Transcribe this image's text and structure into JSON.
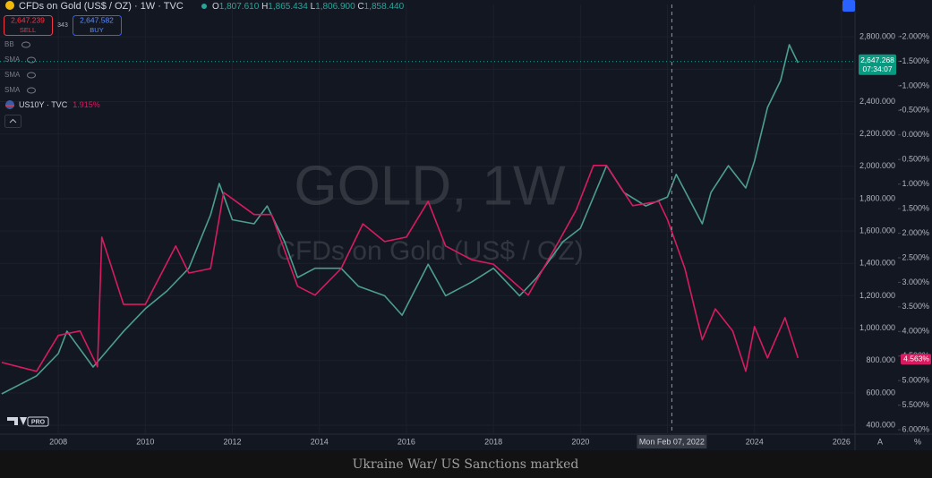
{
  "header": {
    "symbol": "CFDs on Gold (US$ / OZ) · 1W · TVC",
    "ohlc": [
      {
        "key": "O",
        "value": "1,807.610"
      },
      {
        "key": "H",
        "value": "1,865.434"
      },
      {
        "key": "L",
        "value": "1,806.900"
      },
      {
        "key": "C",
        "value": "1,858.440"
      }
    ],
    "sell": {
      "price": "2,647.239",
      "label": "SELL"
    },
    "spread": "343",
    "buy": {
      "price": "2,647.582",
      "label": "BUY"
    },
    "indicators": [
      "BB",
      "SMA",
      "SMA",
      "SMA"
    ],
    "compare": {
      "name": "US10Y · TVC",
      "value": "1.915%"
    }
  },
  "watermark": {
    "main": "GOLD, 1W",
    "sub": "CFDs on Gold (US$ / OZ)"
  },
  "logo": "PRO",
  "axis_corner": [
    "A",
    "%"
  ],
  "caption": "Ukraine War/ US Sanctions marked",
  "chart_data": {
    "type": "line",
    "xlim": [
      2006.66,
      2026.31
    ],
    "xticks": [
      2008,
      2010,
      2012,
      2014,
      2016,
      2018,
      2020,
      2022,
      2024,
      2026
    ],
    "ylim": [
      345,
      3000
    ],
    "yticks": [
      {
        "value": 400,
        "label": "400.000"
      },
      {
        "value": 600,
        "label": "600.000"
      },
      {
        "value": 800,
        "label": "800.000"
      },
      {
        "value": 1000,
        "label": "1,000.000"
      },
      {
        "value": 1200,
        "label": "1,200.000"
      },
      {
        "value": 1400,
        "label": "1,400.000"
      },
      {
        "value": 1600,
        "label": "1,600.000"
      },
      {
        "value": 1800,
        "label": "1,800.000"
      },
      {
        "value": 2000,
        "label": "2,000.000"
      },
      {
        "value": 2200,
        "label": "2,200.000"
      },
      {
        "value": 2400,
        "label": "2,400.000"
      },
      {
        "value": 2600,
        "label": "2,600.000"
      },
      {
        "value": 2800,
        "label": "2,800.000"
      }
    ],
    "y2lim": [
      6.09,
      -2.656
    ],
    "y2ticks": [
      {
        "value": -2,
        "label": "-2.000%"
      },
      {
        "value": -1.5,
        "label": "-1.500%"
      },
      {
        "value": -1,
        "label": "-1.000%"
      },
      {
        "value": -0.5,
        "label": "-0.500%"
      },
      {
        "value": 0,
        "label": "0.000%"
      },
      {
        "value": 0.5,
        "label": "0.500%"
      },
      {
        "value": 1,
        "label": "1.000%"
      },
      {
        "value": 1.5,
        "label": "1.500%"
      },
      {
        "value": 2,
        "label": "2.000%"
      },
      {
        "value": 2.5,
        "label": "2.500%"
      },
      {
        "value": 3,
        "label": "3.000%"
      },
      {
        "value": 3.5,
        "label": "3.500%"
      },
      {
        "value": 4,
        "label": "4.000%"
      },
      {
        "value": 4.5,
        "label": "4.500%"
      },
      {
        "value": 5,
        "label": "5.000%"
      },
      {
        "value": 5.5,
        "label": "5.500%"
      },
      {
        "value": 6,
        "label": "6.000%"
      }
    ],
    "grid": true,
    "series": [
      {
        "name": "CFDs on Gold (US$ / OZ)",
        "color": "#4c9e8f",
        "x": [
          2006.7,
          2007.5,
          2008.0,
          2008.2,
          2008.8,
          2009.5,
          2010.0,
          2010.5,
          2011.0,
          2011.5,
          2011.7,
          2012.0,
          2012.5,
          2012.8,
          2013.2,
          2013.5,
          2013.9,
          2014.5,
          2014.9,
          2015.5,
          2015.9,
          2016.5,
          2016.9,
          2017.5,
          2018.0,
          2018.6,
          2019.0,
          2019.6,
          2020.0,
          2020.6,
          2021.0,
          2021.5,
          2022.0,
          2022.2,
          2022.8,
          2023.0,
          2023.4,
          2023.8,
          2024.0,
          2024.3,
          2024.6,
          2024.8,
          2025.0
        ],
        "values": [
          594,
          705,
          843,
          981,
          760,
          980,
          1120,
          1230,
          1370,
          1700,
          1894,
          1670,
          1645,
          1755,
          1535,
          1313,
          1370,
          1370,
          1258,
          1200,
          1080,
          1395,
          1200,
          1285,
          1370,
          1200,
          1313,
          1535,
          1617,
          2004,
          1838,
          1755,
          1810,
          1950,
          1645,
          1838,
          2004,
          1866,
          2032,
          2364,
          2530,
          2751,
          2640
        ]
      },
      {
        "name": "US10Y",
        "color": "#d81b60",
        "axis": "y2",
        "x": [
          2006.7,
          2007.5,
          2008.0,
          2008.5,
          2008.9,
          2009.0,
          2009.5,
          2010.0,
          2010.7,
          2011.0,
          2011.5,
          2011.8,
          2012.5,
          2012.9,
          2013.5,
          2013.9,
          2014.5,
          2015.0,
          2015.5,
          2016.0,
          2016.5,
          2016.9,
          2017.5,
          2018.0,
          2018.8,
          2019.5,
          2019.9,
          2020.3,
          2020.6,
          2021.2,
          2021.8,
          2022.0,
          2022.4,
          2022.8,
          2023.1,
          2023.5,
          2023.8,
          2024.0,
          2024.3,
          2024.7,
          2024.9,
          2025.0
        ],
        "values": [
          4.63,
          4.81,
          4.08,
          3.99,
          4.72,
          2.08,
          3.45,
          3.45,
          2.26,
          2.81,
          2.72,
          1.17,
          1.62,
          1.62,
          3.08,
          3.26,
          2.72,
          1.81,
          2.17,
          2.08,
          1.35,
          2.26,
          2.54,
          2.63,
          3.26,
          2.17,
          1.53,
          0.62,
          0.62,
          1.44,
          1.35,
          1.72,
          2.72,
          4.17,
          3.54,
          3.99,
          4.81,
          3.9,
          4.54,
          3.72,
          4.26,
          4.54
        ]
      }
    ],
    "last_price": {
      "value": 2647.268,
      "label": "2,647.268",
      "time": "07:34:07"
    },
    "last_yield": {
      "value": 4.563,
      "label": "4.563%"
    },
    "crosshair": {
      "x": 2022.1,
      "label": "Mon Feb 07, 2022"
    }
  }
}
